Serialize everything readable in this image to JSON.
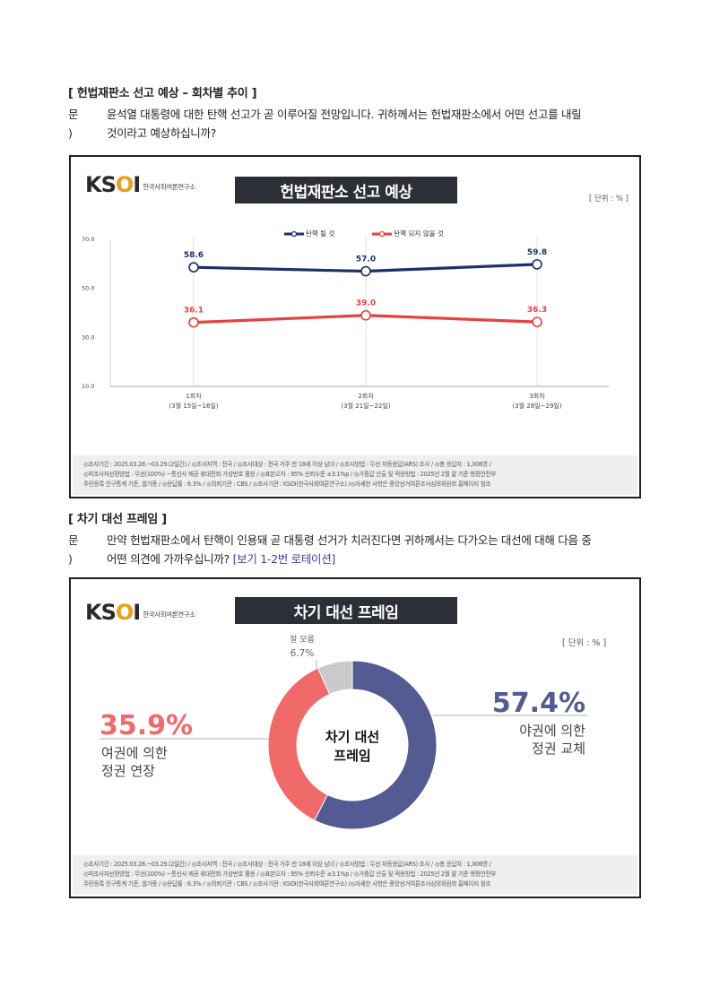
{
  "section1": {
    "title": "[ 헌법재판소 선고 예상 – 회차별 추이 ]",
    "q_mark": "문 )",
    "q_line1": "윤석열 대통령에 대한 탄핵 선고가 곧 이루어질 전망입니다. 귀하께서는 헌법재판소에서 어떤 선고를 내릴",
    "q_line2": "것이라고 예상하십니까?"
  },
  "section2": {
    "title": "[ 차기 대선 프레임 ]",
    "q_mark": "문 )",
    "q_line1": "만약 헌법재판소에서 탄핵이 인용돼 곧 대통령 선거가 치러진다면 귀하께서는 다가오는 대선에 대해 다음 중",
    "q_line2a": "어떤 의견에 가까우십니까?",
    "q_line2b": "[보기 1-2번 로테이션]"
  },
  "logo": {
    "mark_left": "KS",
    "mark_o": "O",
    "mark_right": "I",
    "sub": "한국사회여론연구소"
  },
  "footnote": {
    "line1": "◎조사기간 : 2025.03.28.~03.29.(2일간) / ◎조사지역 : 전국 / ◎조사대상 : 전국 거주 만 18세 이상 남녀 / ◎조사방법 : 무선 자동응답(ARS) 조사 / ◎총 응답자 : 1,006명 /",
    "line2": "◎피조사자선정방법 : 무선(100%) ~통신사 제공 휴대전화 가상번호 활용 / ◎표본오차 : 95% 신뢰수준 ±3.1%p / ◎가중값 산출 및 적용방법 : 2025년 2월 말 기준 행정안전부",
    "line3": "주민등록 인구통계 기준, 셀가중 / ◎응답률 : 6.3% / ◎의뢰기관 : CBS / ◎조사기관 : KSOI(한국사회여론연구소) /◎자세한 사항은 중앙선거여론조사심의위원회 홈페이지 참조"
  },
  "chart_data": [
    {
      "type": "line",
      "title": "헌법재판소 선고 예상",
      "unit_label": "[ 단위 : % ]",
      "x": [
        "1회차",
        "2회차",
        "3회차"
      ],
      "x_sub": [
        "(3월 15일~16일)",
        "(3월 21일~22일)",
        "(3월 28일~29일)"
      ],
      "yticks": [
        "70.0",
        "50.0",
        "30.0",
        "10.0"
      ],
      "ylim": [
        10,
        70
      ],
      "grid": false,
      "legend": "top-center",
      "series": [
        {
          "name": "탄핵 될 것",
          "color": "#1f2f6b",
          "values": [
            58.6,
            57.0,
            59.8
          ],
          "labels": [
            "58.6",
            "57.0",
            "59.8"
          ]
        },
        {
          "name": "탄핵 되지 않을 것",
          "color": "#e8413e",
          "values": [
            36.1,
            39.0,
            36.3
          ],
          "labels": [
            "36.1",
            "39.0",
            "36.3"
          ]
        }
      ]
    },
    {
      "type": "pie",
      "title": "차기 대선 프레임",
      "unit_label": "[ 단위 : % ]",
      "center_line1": "차기 대선",
      "center_line2": "프레임",
      "slices": [
        {
          "name_line1": "야권에 의한",
          "name_line2": "정권 교체",
          "value": 57.4,
          "label": "57.4%",
          "color": "#545a92"
        },
        {
          "name_line1": "여권에 의한",
          "name_line2": "정권 연장",
          "value": 35.9,
          "label": "35.9%",
          "color": "#f06a6a"
        },
        {
          "name_line1": "잘 모름",
          "name_line2": "",
          "value": 6.7,
          "label": "6.7%",
          "color": "#c4c4c4"
        }
      ]
    }
  ]
}
